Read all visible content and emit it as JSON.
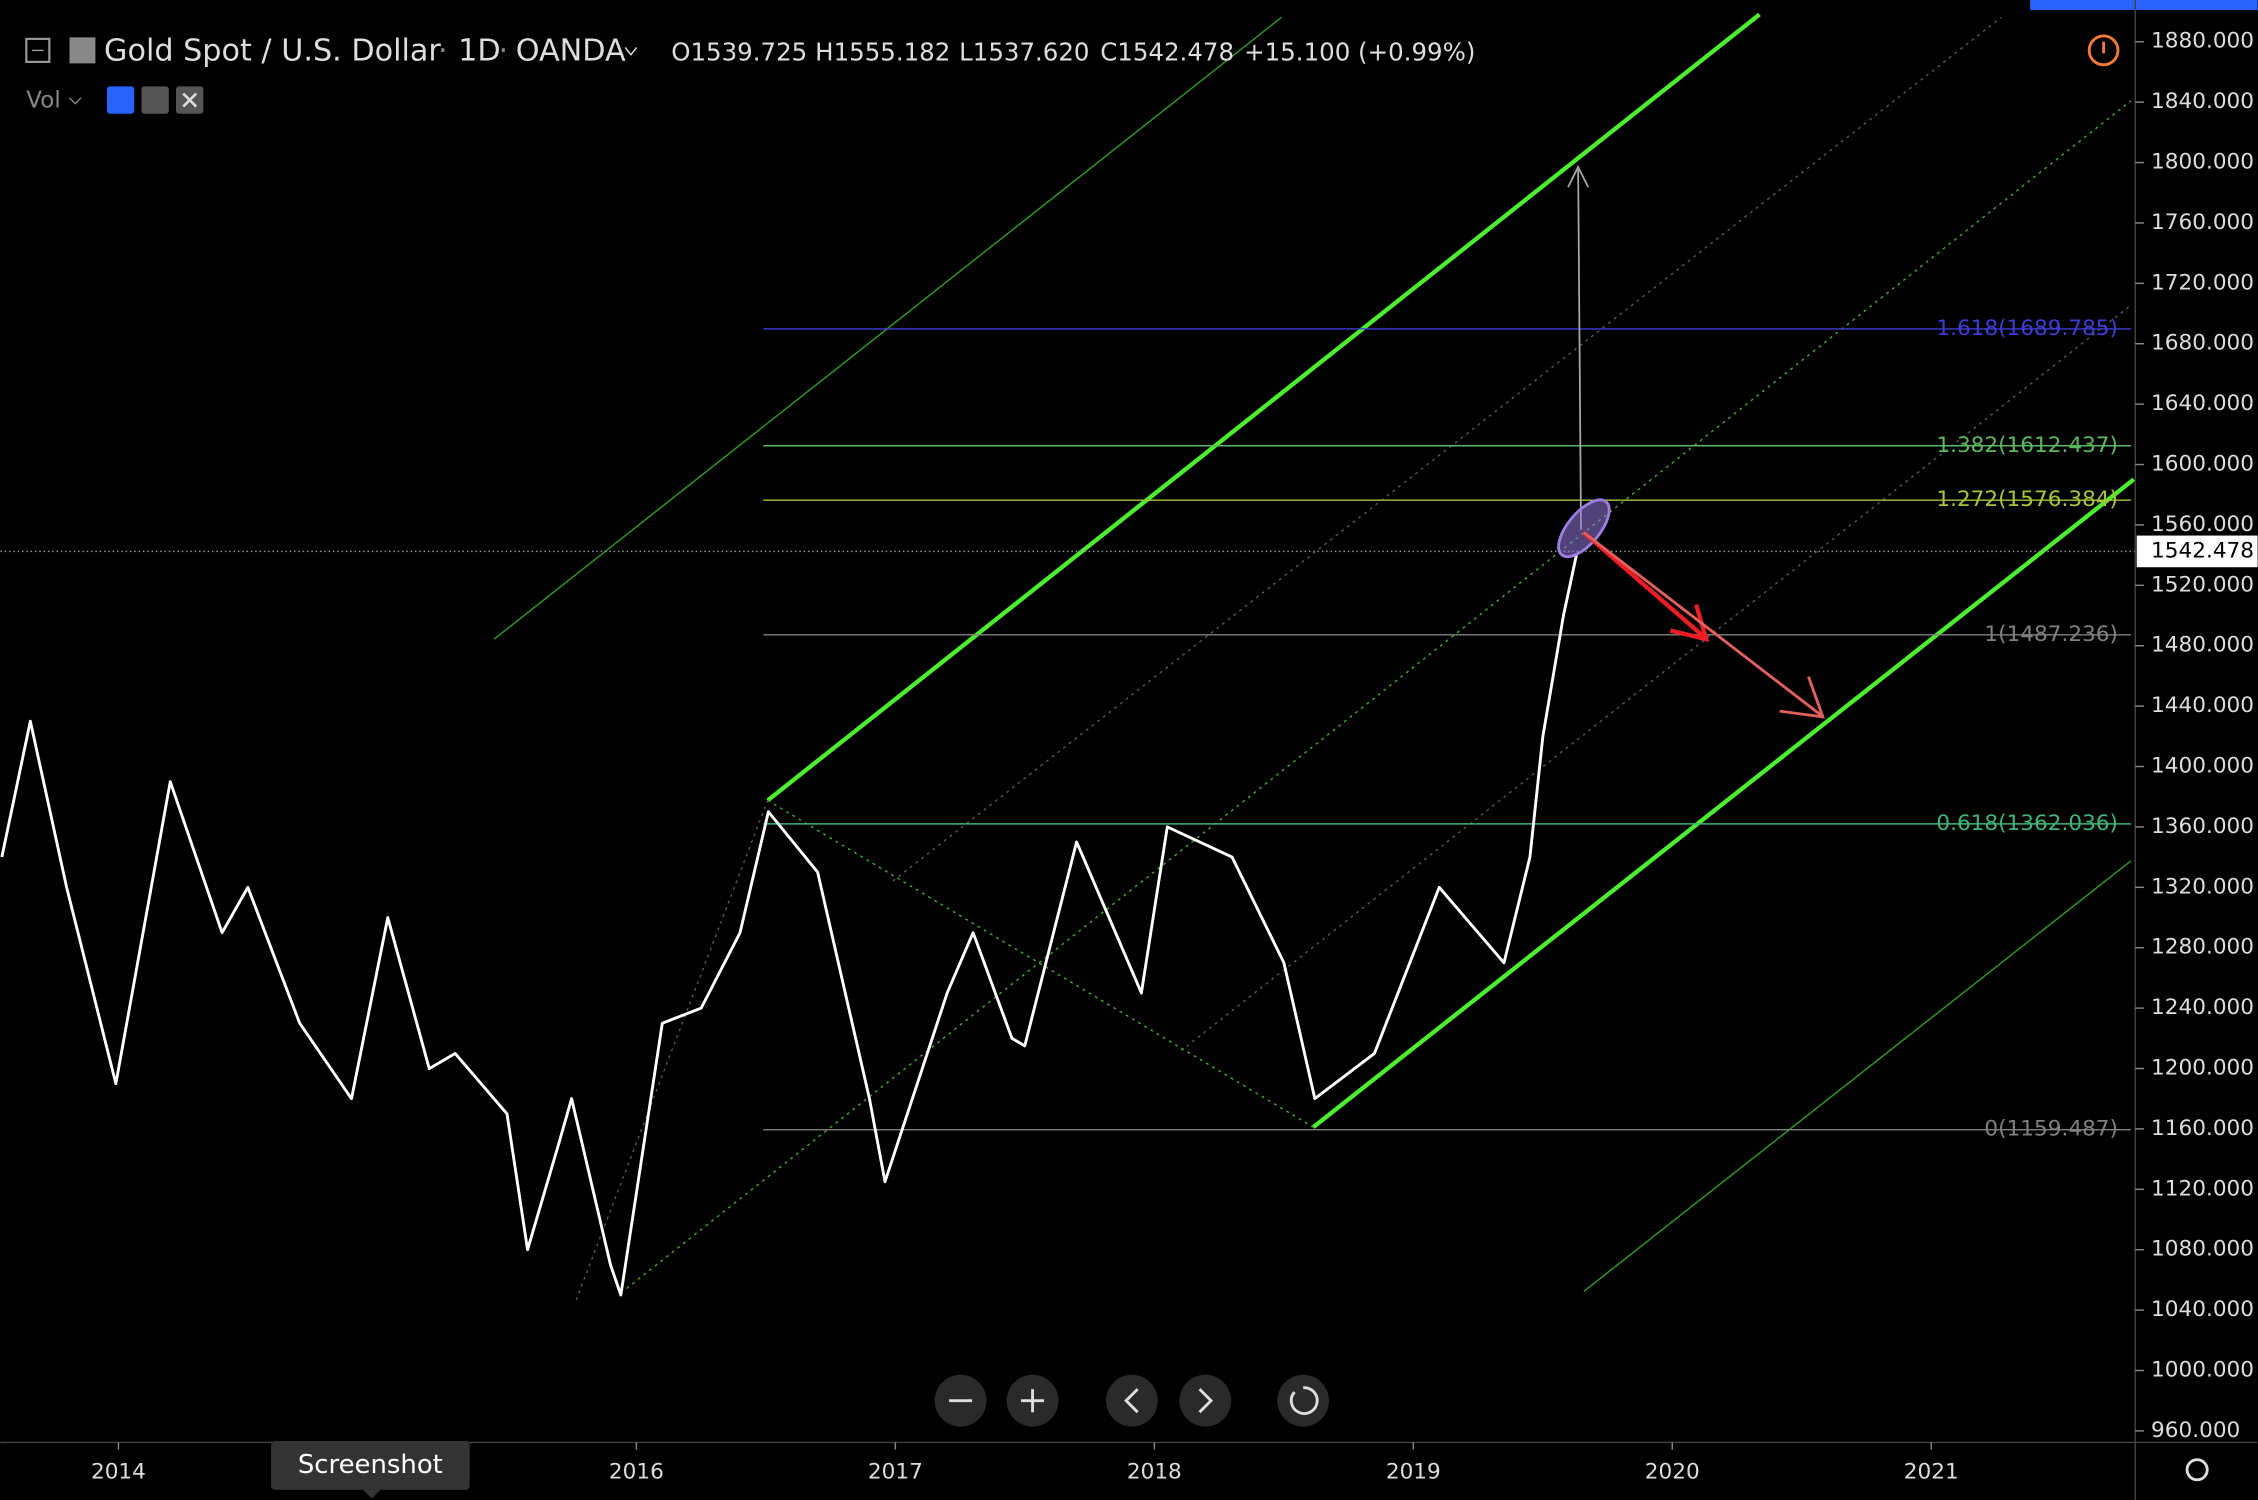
{
  "header": {
    "symbol": "Gold Spot / U.S. Dollar",
    "interval": "1D",
    "exchange": "OANDA",
    "open": "O1539.725",
    "high": "H1555.182",
    "low": "L1537.620",
    "close": "C1542.478",
    "change": "+15.100 (+0.99%)",
    "volume": "Vol"
  },
  "chart": {
    "type": "line",
    "color": "#ffffff",
    "x": [
      2013.55,
      2013.66,
      2013.8,
      2013.99,
      2014.2,
      2014.4,
      2014.5,
      2014.7,
      2014.9,
      2015.04,
      2015.2,
      2015.3,
      2015.5,
      2015.58,
      2015.7,
      2015.75,
      2015.9,
      2015.94,
      2016.1,
      2016.25,
      2016.4,
      2016.51,
      2016.7,
      2016.9,
      2016.96,
      2017.2,
      2017.3,
      2017.45,
      2017.5,
      2017.7,
      2017.95,
      2018.05,
      2018.3,
      2018.5,
      2018.62,
      2018.85,
      2019.1,
      2019.2,
      2019.35,
      2019.45,
      2019.5,
      2019.58,
      2019.63
    ],
    "prices": [
      1340,
      1430,
      1320,
      1190,
      1390,
      1290,
      1320,
      1230,
      1180,
      1300,
      1200,
      1210,
      1170,
      1080,
      1150,
      1180,
      1070,
      1050,
      1230,
      1240,
      1290,
      1370,
      1330,
      1180,
      1125,
      1250,
      1290,
      1220,
      1215,
      1350,
      1250,
      1360,
      1340,
      1270,
      1180,
      1210,
      1320,
      1300,
      1270,
      1340,
      1420,
      1500,
      1540
    ],
    "ylim": [
      960,
      1880
    ],
    "yticks": [
      {
        "value": 960,
        "label": "960.000"
      },
      {
        "value": 1000,
        "label": "1000.000"
      },
      {
        "value": 1040,
        "label": "1040.000"
      },
      {
        "value": 1080,
        "label": "1080.000"
      },
      {
        "value": 1120,
        "label": "1120.000"
      },
      {
        "value": 1160,
        "label": "1160.000"
      },
      {
        "value": 1200,
        "label": "1200.000"
      },
      {
        "value": 1240,
        "label": "1240.000"
      },
      {
        "value": 1280,
        "label": "1280.000"
      },
      {
        "value": 1320,
        "label": "1320.000"
      },
      {
        "value": 1360,
        "label": "1360.000"
      },
      {
        "value": 1400,
        "label": "1400.000"
      },
      {
        "value": 1440,
        "label": "1440.000"
      },
      {
        "value": 1480,
        "label": "1480.000"
      },
      {
        "value": 1520,
        "label": "1520.000"
      },
      {
        "value": 1560,
        "label": "1560.000"
      },
      {
        "value": 1600,
        "label": "1600.000"
      },
      {
        "value": 1640,
        "label": "1640.000"
      },
      {
        "value": 1680,
        "label": "1680.000"
      },
      {
        "value": 1720,
        "label": "1720.000"
      },
      {
        "value": 1760,
        "label": "1760.000"
      },
      {
        "value": 1800,
        "label": "1800.000"
      },
      {
        "value": 1840,
        "label": "1840.000"
      },
      {
        "value": 1880,
        "label": "1880.000"
      }
    ],
    "xticks": [
      2014,
      2016,
      2017,
      2018,
      2019,
      2020,
      2021
    ],
    "last_price": 1542.478,
    "fib_levels": [
      {
        "label": "1.618(1689.785)",
        "value": 1689.785,
        "color": "#3d3dd6"
      },
      {
        "label": "1.382(1612.437)",
        "value": 1612.437,
        "color": "#5cb85c"
      },
      {
        "label": "1.272(1576.384)",
        "value": 1576.384,
        "color": "#a8c43a"
      },
      {
        "label": "1(1487.236)",
        "value": 1487.236,
        "color": "#808080"
      },
      {
        "label": "0.618(1362.036)",
        "value": 1362.036,
        "color": "#3fb57a"
      },
      {
        "label": "0(1159.487)",
        "value": 1159.487,
        "color": "#808080"
      }
    ]
  },
  "tooltip": "Screenshot"
}
